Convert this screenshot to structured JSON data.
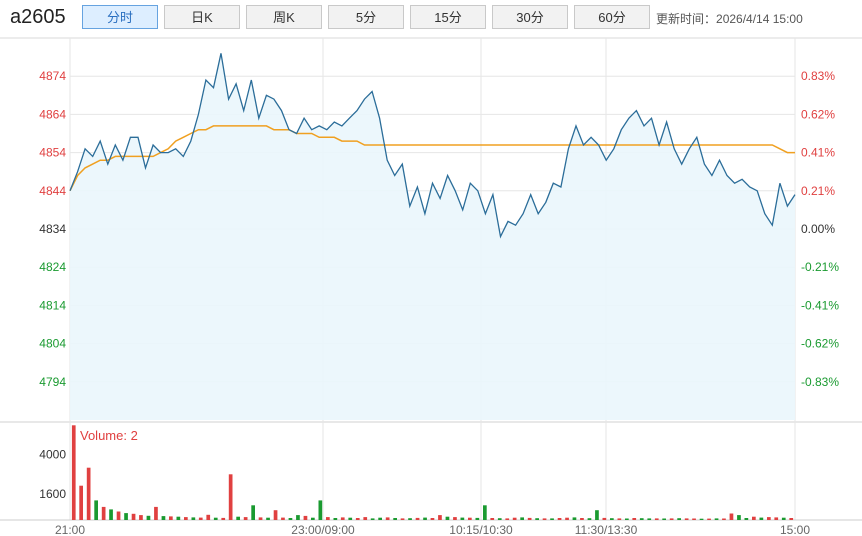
{
  "header": {
    "symbol": "a2605",
    "tabs": [
      {
        "label": "分时",
        "active": true
      },
      {
        "label": "日K",
        "active": false
      },
      {
        "label": "周K",
        "active": false
      },
      {
        "label": "5分",
        "active": false
      },
      {
        "label": "15分",
        "active": false
      },
      {
        "label": "30分",
        "active": false
      },
      {
        "label": "60分",
        "active": false
      }
    ],
    "updated_label": "更新时间：",
    "updated_time": "2026/4/14 15:00"
  },
  "colors": {
    "price_line": "#2b6d99",
    "avg_line": "#f0a020",
    "area_fill": "#eaf6fc",
    "up": "#e04040",
    "down": "#1a9a30",
    "grid": "#e6e6e6"
  },
  "chart_data": {
    "type": "line",
    "x_ticks": [
      "21:00",
      "23:00/09:00",
      "10:15/10:30",
      "11:30/13:30",
      "15:00"
    ],
    "y_ticks": [
      4874,
      4864,
      4854,
      4844,
      4834,
      4824,
      4814,
      4804,
      4794
    ],
    "y_tick_colors": [
      "up",
      "up",
      "up",
      "up",
      "neutral",
      "down",
      "down",
      "down",
      "down"
    ],
    "pct_ticks": [
      "0.83%",
      "0.62%",
      "0.41%",
      "0.21%",
      "0.00%",
      "-0.21%",
      "-0.41%",
      "-0.62%",
      "-0.83%"
    ],
    "ylim": [
      4784,
      4884
    ],
    "price": [
      4844,
      4849,
      4855,
      4853,
      4857,
      4851,
      4856,
      4852,
      4858,
      4858,
      4850,
      4856,
      4854,
      4854,
      4855,
      4853,
      4857,
      4864,
      4873,
      4871,
      4880,
      4868,
      4872,
      4865,
      4873,
      4863,
      4869,
      4868,
      4865,
      4860,
      4859,
      4863,
      4860,
      4861,
      4860,
      4862,
      4861,
      4863,
      4865,
      4868,
      4870,
      4863,
      4852,
      4848,
      4851,
      4840,
      4845,
      4838,
      4846,
      4842,
      4848,
      4844,
      4839,
      4846,
      4844,
      4838,
      4843,
      4832,
      4836,
      4835,
      4838,
      4843,
      4838,
      4841,
      4846,
      4845,
      4855,
      4861,
      4856,
      4858,
      4856,
      4852,
      4855,
      4860,
      4863,
      4865,
      4861,
      4863,
      4856,
      4862,
      4855,
      4851,
      4855,
      4858,
      4851,
      4848,
      4852,
      4848,
      4846,
      4847,
      4845,
      4844,
      4838,
      4835,
      4846,
      4840,
      4843
    ],
    "avg": [
      4844,
      4848,
      4850,
      4851,
      4852,
      4852,
      4853,
      4853,
      4853,
      4853,
      4853,
      4853,
      4854,
      4855,
      4857,
      4858,
      4859,
      4860,
      4860,
      4861,
      4861,
      4861,
      4861,
      4861,
      4861,
      4861,
      4861,
      4860,
      4860,
      4860,
      4859,
      4859,
      4859,
      4858,
      4858,
      4858,
      4857,
      4857,
      4857,
      4856,
      4856,
      4856,
      4856,
      4856,
      4856,
      4856,
      4856,
      4856,
      4856,
      4856,
      4856,
      4856,
      4856,
      4856,
      4856,
      4856,
      4856,
      4856,
      4856,
      4856,
      4856,
      4856,
      4856,
      4856,
      4856,
      4856,
      4856,
      4856,
      4856,
      4856,
      4856,
      4856,
      4856,
      4856,
      4856,
      4856,
      4856,
      4856,
      4856,
      4856,
      4856,
      4856,
      4856,
      4856,
      4856,
      4856,
      4856,
      4856,
      4856,
      4856,
      4856,
      4856,
      4856,
      4856,
      4855,
      4854,
      4854
    ],
    "volume_label": "Volume: 2",
    "volume_ticks": [
      4000,
      1600
    ],
    "volume_ylim": [
      0,
      6000
    ],
    "volume": [
      5800,
      2100,
      3200,
      1200,
      800,
      650,
      520,
      420,
      380,
      300,
      260,
      800,
      240,
      220,
      200,
      180,
      160,
      150,
      320,
      140,
      130,
      2800,
      200,
      180,
      900,
      160,
      140,
      600,
      150,
      120,
      300,
      250,
      140,
      1200,
      180,
      120,
      160,
      140,
      120,
      180,
      100,
      140,
      160,
      120,
      100,
      110,
      130,
      150,
      120,
      300,
      200,
      180,
      150,
      140,
      130,
      900,
      120,
      110,
      100,
      140,
      160,
      130,
      110,
      100,
      95,
      120,
      140,
      160,
      120,
      110,
      600,
      130,
      110,
      100,
      90,
      120,
      110,
      100,
      95,
      90,
      100,
      110,
      95,
      90,
      80,
      85,
      100,
      90,
      400,
      300,
      120,
      200,
      150,
      180,
      160,
      140,
      120
    ],
    "volume_up": [
      true,
      true,
      true,
      false,
      true,
      false,
      true,
      false,
      true,
      true,
      false,
      true,
      false,
      true,
      false,
      true,
      false,
      true,
      true,
      false,
      true,
      true,
      false,
      true,
      false,
      true,
      false,
      true,
      true,
      false,
      false,
      true,
      false,
      false,
      true,
      false,
      true,
      false,
      true,
      true,
      false,
      false,
      true,
      false,
      true,
      false,
      true,
      false,
      true,
      true,
      false,
      true,
      false,
      true,
      false,
      false,
      true,
      false,
      true,
      true,
      false,
      true,
      false,
      true,
      false,
      true,
      true,
      false,
      true,
      false,
      false,
      true,
      false,
      true,
      false,
      true,
      false,
      false,
      true,
      false,
      true,
      false,
      true,
      true,
      false,
      true,
      false,
      true,
      true,
      false,
      false,
      true,
      false,
      true,
      true,
      false,
      true
    ]
  }
}
